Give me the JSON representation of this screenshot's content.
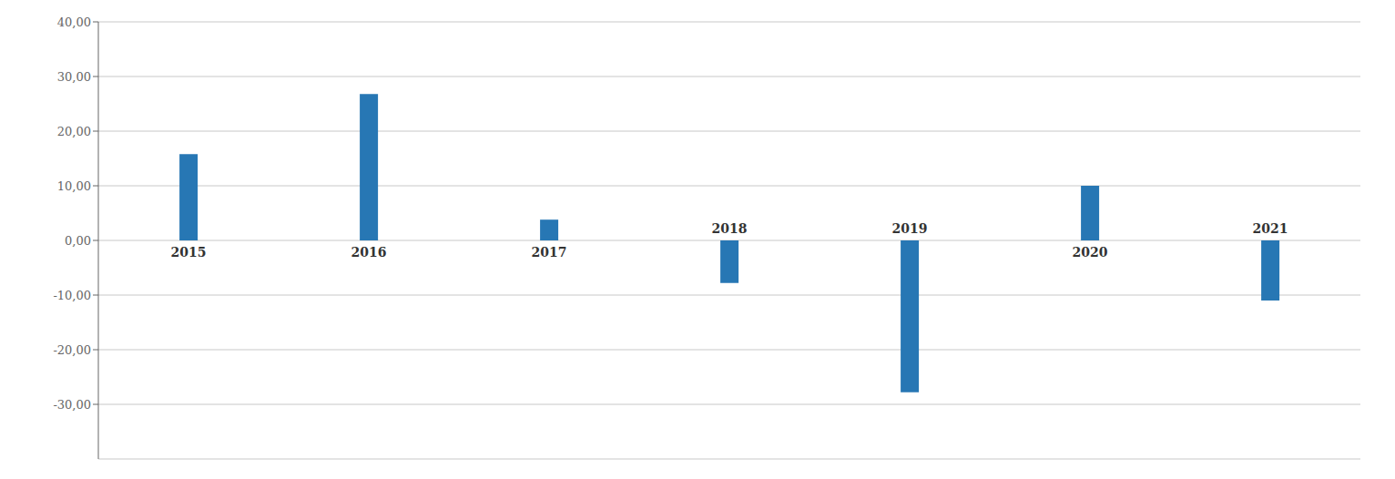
{
  "chart_data": {
    "type": "bar",
    "categories": [
      "2015",
      "2016",
      "2017",
      "2018",
      "2019",
      "2020",
      "2021"
    ],
    "values": [
      15.8,
      26.8,
      3.8,
      -7.8,
      -27.8,
      10.0,
      -11.0
    ],
    "color": "#2777b4",
    "ylim": [
      -40,
      40
    ],
    "yticks": [
      {
        "value": -30,
        "label": "-30,00"
      },
      {
        "value": -20,
        "label": "-20,00"
      },
      {
        "value": -10,
        "label": "-10,00"
      },
      {
        "value": 0,
        "label": "0,00"
      },
      {
        "value": 10,
        "label": "10,00"
      },
      {
        "value": 20,
        "label": "20,00"
      },
      {
        "value": 30,
        "label": "30,00"
      },
      {
        "value": 40,
        "label": "40,00"
      }
    ],
    "grid": true
  }
}
